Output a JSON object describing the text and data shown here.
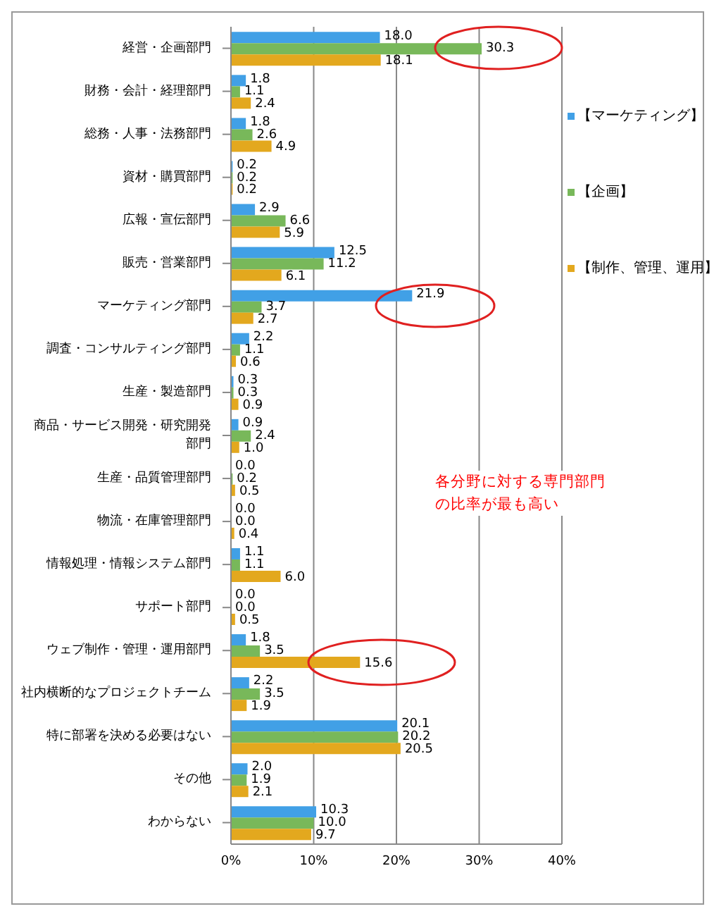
{
  "chart_data": {
    "type": "bar",
    "orientation": "horizontal",
    "categories": [
      "経営・企画部門",
      "財務・会計・経理部門",
      "総務・人事・法務部門",
      "資材・購買部門",
      "広報・宣伝部門",
      "販売・営業部門",
      "マーケティング部門",
      "調査・コンサルティング部門",
      "生産・製造部門",
      "商品・サービス開発・研究開発部門",
      "生産・品質管理部門",
      "物流・在庫管理部門",
      "情報処理・情報システム部門",
      "サポート部門",
      "ウェブ制作・管理・運用部門",
      "社内横断的なプロジェクトチーム",
      "特に部署を決める必要はない",
      "その他",
      "わからない"
    ],
    "series": [
      {
        "name": "【マーケティング】",
        "color": "#41a0e6",
        "values": [
          18.0,
          1.8,
          1.8,
          0.2,
          2.9,
          12.5,
          21.9,
          2.2,
          0.3,
          0.9,
          0.0,
          0.0,
          1.1,
          0.0,
          1.8,
          2.2,
          20.1,
          2.0,
          10.3
        ],
        "value_labels": [
          "18.0",
          "1.8",
          "1.8",
          "0.2",
          "2.9",
          "12.5",
          "21.9",
          "2.2",
          "0.3",
          "0.9",
          "0.0",
          "0.0",
          "1.1",
          "0.0",
          "1.8",
          "2.2",
          "20.1",
          "2.0",
          "10.3"
        ]
      },
      {
        "name": "【企画】",
        "color": "#78b85a",
        "values": [
          30.3,
          1.1,
          2.6,
          0.2,
          6.6,
          11.2,
          3.7,
          1.1,
          0.3,
          2.4,
          0.2,
          0.0,
          1.1,
          0.0,
          3.5,
          3.5,
          20.2,
          1.9,
          10.0
        ],
        "value_labels": [
          "30.3",
          "1.1",
          "2.6",
          "0.2",
          "6.6",
          "11.2",
          "3.7",
          "1.1",
          "0.3",
          "2.4",
          "0.2",
          "0.0",
          "1.1",
          "0.0",
          "3.5",
          "3.5",
          "20.2",
          "1.9",
          "10.0"
        ]
      },
      {
        "name": "【制作、管理、運用】",
        "color": "#e3a81e",
        "values": [
          18.1,
          2.4,
          4.9,
          0.2,
          5.9,
          6.1,
          2.7,
          0.6,
          0.9,
          1.0,
          0.5,
          0.4,
          6.0,
          0.5,
          15.6,
          1.9,
          20.5,
          2.1,
          9.7
        ],
        "value_labels": [
          "18.1",
          "2.4",
          "4.9",
          "0.2",
          "5.9",
          "6.1",
          "2.7",
          "0.6",
          "0.9",
          "1.0",
          "0.5",
          "0.4",
          "6.0",
          "0.5",
          "15.6",
          "1.9",
          "20.5",
          "2.1",
          "9.7"
        ]
      }
    ],
    "xlim": [
      0,
      40
    ],
    "xticks": [
      {
        "value": 0,
        "label": "0%"
      },
      {
        "value": 10,
        "label": "10%"
      },
      {
        "value": 20,
        "label": "20%"
      },
      {
        "value": 30,
        "label": "30%"
      },
      {
        "value": 40,
        "label": "40%"
      }
    ],
    "grid": "x",
    "legend": "right",
    "annotations": [
      "各分野に対する専門部門の比率が最も高い"
    ]
  }
}
